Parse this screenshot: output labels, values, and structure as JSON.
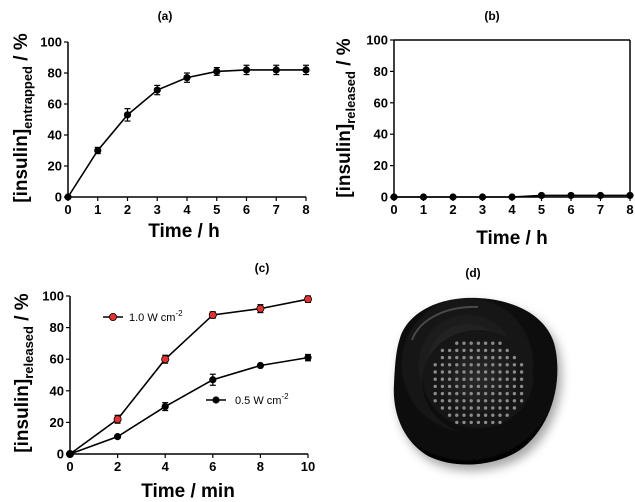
{
  "chart_data": [
    {
      "type": "line",
      "panel_label": "(a)",
      "title": "",
      "xlabel": "Time / h",
      "ylabel_main": "[insulin]",
      "ylabel_sub": "entrapped",
      "ylabel_unit": " / %",
      "xlim": [
        0,
        8
      ],
      "ylim": [
        0,
        100
      ],
      "xticks": [
        0,
        1,
        2,
        3,
        4,
        5,
        6,
        7,
        8
      ],
      "yticks": [
        0,
        20,
        40,
        60,
        80,
        100
      ],
      "grid": false,
      "series": [
        {
          "color": "#000000",
          "x": [
            0,
            1,
            2,
            3,
            4,
            5,
            6,
            7,
            8
          ],
          "y": [
            0,
            30,
            53,
            69,
            77,
            81,
            82,
            82,
            82
          ],
          "err": [
            0,
            2,
            4,
            3,
            3,
            2.5,
            3,
            3,
            3
          ]
        }
      ]
    },
    {
      "type": "line",
      "panel_label": "(b)",
      "title": "",
      "xlabel": "Time / h",
      "ylabel_main": "[insulin]",
      "ylabel_sub": "released",
      "ylabel_unit": " / %",
      "xlim": [
        0,
        8
      ],
      "ylim": [
        0,
        100
      ],
      "xticks": [
        0,
        1,
        2,
        3,
        4,
        5,
        6,
        7,
        8
      ],
      "yticks": [
        0,
        20,
        40,
        60,
        80,
        100
      ],
      "grid": false,
      "series": [
        {
          "color": "#000000",
          "x": [
            0,
            1,
            2,
            3,
            4,
            5,
            6,
            7,
            8
          ],
          "y": [
            0,
            0,
            0,
            0,
            0,
            1,
            1,
            1,
            1
          ],
          "err": [
            0,
            0,
            0,
            0,
            0,
            0,
            0,
            0,
            0
          ]
        }
      ]
    },
    {
      "type": "line",
      "panel_label": "(c)",
      "title": "",
      "xlabel": "Time / min",
      "ylabel_main": "[insulin]",
      "ylabel_sub": "released",
      "ylabel_unit": " / %",
      "xlim": [
        0,
        10
      ],
      "ylim": [
        0,
        100
      ],
      "xticks": [
        0,
        2,
        4,
        6,
        8,
        10
      ],
      "yticks": [
        0,
        20,
        40,
        60,
        80,
        100
      ],
      "grid": false,
      "legend_placement": "inside",
      "series": [
        {
          "name_main": "1.0 W cm",
          "name_sup": "-2",
          "color": "#e8312f",
          "x": [
            0,
            2,
            4,
            6,
            8,
            10
          ],
          "y": [
            0,
            22,
            60,
            88,
            92,
            98
          ],
          "err": [
            0,
            2.5,
            2.5,
            2,
            2.5,
            2
          ]
        },
        {
          "name_main": "0.5 W cm",
          "name_sup": "-2",
          "color": "#000000",
          "x": [
            0,
            2,
            4,
            6,
            8,
            10
          ],
          "y": [
            0,
            11,
            30,
            47,
            56,
            61
          ],
          "err": [
            0,
            0,
            2.5,
            3.5,
            0,
            2
          ]
        }
      ]
    }
  ],
  "photo": {
    "panel_label": "(d)",
    "disc_color": "#141414",
    "background_color": "#ffffff"
  }
}
